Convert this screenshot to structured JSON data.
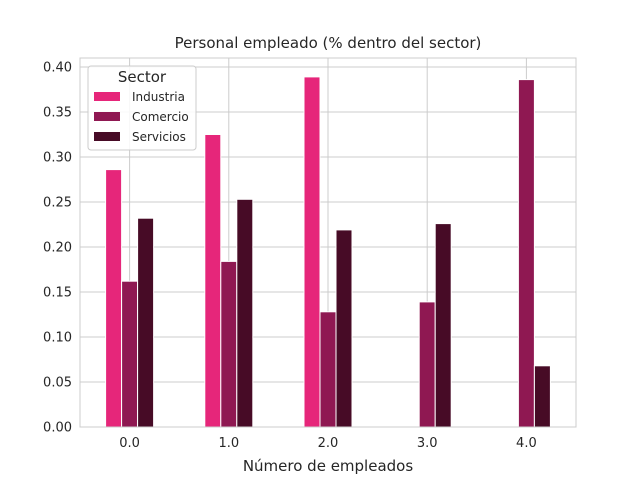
{
  "chart_data": {
    "type": "bar",
    "title": "Personal empleado (% dentro del sector)",
    "xlabel": "Número de empleados",
    "ylabel": "",
    "categories": [
      "0.0",
      "1.0",
      "2.0",
      "3.0",
      "4.0"
    ],
    "ylim": [
      0,
      0.41
    ],
    "yticks": [
      "0.00",
      "0.05",
      "0.10",
      "0.15",
      "0.20",
      "0.25",
      "0.30",
      "0.35",
      "0.40"
    ],
    "grid": true,
    "legend": {
      "title": "Sector",
      "placement": "upper-left"
    },
    "series": [
      {
        "name": "Industria",
        "color": "#e6267a",
        "values": [
          0.286,
          0.325,
          0.389,
          0,
          0
        ]
      },
      {
        "name": "Comercio",
        "color": "#8f1852",
        "values": [
          0.162,
          0.184,
          0.128,
          0.139,
          0.386
        ]
      },
      {
        "name": "Servicios",
        "color": "#470b26",
        "values": [
          0.232,
          0.253,
          0.219,
          0.226,
          0.068
        ]
      }
    ]
  }
}
